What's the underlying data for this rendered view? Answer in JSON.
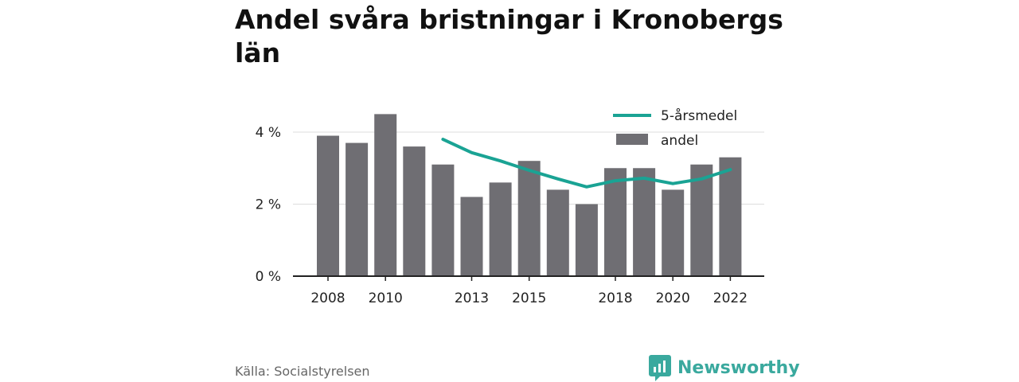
{
  "chart_data": {
    "type": "bar",
    "title": "Andel svåra bristningar i Kronobergs län",
    "x": [
      2008,
      2009,
      2010,
      2011,
      2012,
      2013,
      2014,
      2015,
      2016,
      2017,
      2018,
      2019,
      2020,
      2021,
      2022
    ],
    "x_tick_labels": [
      "2008",
      "2010",
      "2013",
      "2015",
      "2018",
      "2020",
      "2022"
    ],
    "x_tick_values": [
      2008,
      2010,
      2013,
      2015,
      2018,
      2020,
      2022
    ],
    "y_tick_labels": [
      "0 %",
      "2 %",
      "4 %"
    ],
    "y_tick_values": [
      0,
      2,
      4
    ],
    "ylim": [
      0,
      4.5
    ],
    "series": [
      {
        "name": "andel",
        "type": "bar",
        "color": "#6f6e73",
        "values": [
          3.9,
          3.7,
          4.5,
          3.6,
          3.1,
          2.2,
          2.6,
          3.2,
          2.4,
          2.0,
          3.0,
          3.0,
          2.4,
          3.1,
          3.3
        ]
      },
      {
        "name": "5-årsmedel",
        "type": "line",
        "color": "#1aa394",
        "values": [
          null,
          null,
          null,
          null,
          3.8,
          3.43,
          3.2,
          2.94,
          2.7,
          2.48,
          2.65,
          2.72,
          2.57,
          2.7,
          2.96
        ]
      }
    ],
    "legend_position": "top-right",
    "grid": true
  },
  "title": "Andel svåra bristningar i Kronobergs län",
  "source": "Källa: Socialstyrelsen",
  "brand": {
    "name": "Newsworthy",
    "color": "#3aa99e"
  }
}
